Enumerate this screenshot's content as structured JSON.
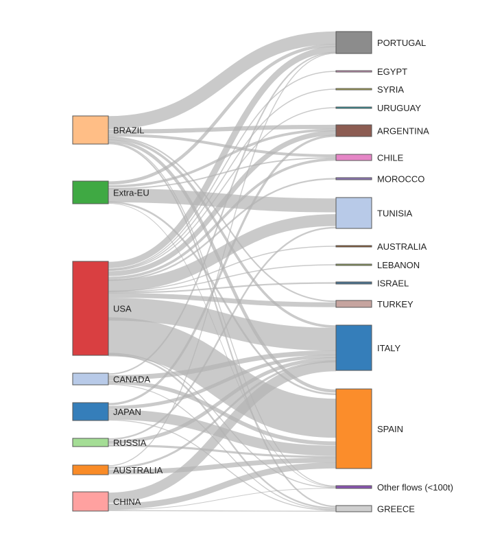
{
  "sources": [
    {
      "id": "brazil",
      "label": "BRAZIL",
      "color": "#ffbe86"
    },
    {
      "id": "extra-eu",
      "label": "Extra-EU",
      "color": "#3fa943"
    },
    {
      "id": "usa",
      "label": "USA",
      "color": "#d93f41"
    },
    {
      "id": "canada",
      "label": "CANADA",
      "color": "#b8cae8"
    },
    {
      "id": "japan",
      "label": "JAPAN",
      "color": "#357eba"
    },
    {
      "id": "russia",
      "label": "RUSSIA",
      "color": "#a4dd95"
    },
    {
      "id": "australia-src",
      "label": "AUSTRALIA",
      "color": "#f98b27"
    },
    {
      "id": "china",
      "label": "CHINA",
      "color": "#ffa1a0"
    }
  ],
  "targets": [
    {
      "id": "portugal",
      "label": "PORTUGAL",
      "color": "#8c8c8c"
    },
    {
      "id": "egypt",
      "label": "EGYPT",
      "color": "#d79dc2"
    },
    {
      "id": "syria",
      "label": "SYRIA",
      "color": "#b7b34f"
    },
    {
      "id": "uruguay",
      "label": "URUGUAY",
      "color": "#2b9aa4"
    },
    {
      "id": "argentina",
      "label": "ARGENTINA",
      "color": "#8c5c52"
    },
    {
      "id": "chile",
      "label": "CHILE",
      "color": "#e586c6"
    },
    {
      "id": "morocco",
      "label": "MOROCCO",
      "color": "#8f78b6"
    },
    {
      "id": "tunisia",
      "label": "TUNISIA",
      "color": "#b8cae8"
    },
    {
      "id": "australia-dst",
      "label": "AUSTRALIA",
      "color": "#955a2a"
    },
    {
      "id": "lebanon",
      "label": "LEBANON",
      "color": "#98a85b"
    },
    {
      "id": "israel",
      "label": "ISRAEL",
      "color": "#4b7797"
    },
    {
      "id": "turkey",
      "label": "TURKEY",
      "color": "#c6a49f"
    },
    {
      "id": "italy",
      "label": "ITALY",
      "color": "#357eba"
    },
    {
      "id": "spain",
      "label": "SPAIN",
      "color": "#fb8d2b"
    },
    {
      "id": "other",
      "label": "Other flows (<100t)",
      "color": "#8a54b2"
    },
    {
      "id": "greece",
      "label": "GREECE",
      "color": "#cfcfcf"
    }
  ],
  "flows": [
    [
      "brazil",
      "portugal",
      12
    ],
    [
      "brazil",
      "argentina",
      4
    ],
    [
      "brazil",
      "chile",
      2.5
    ],
    [
      "brazil",
      "turkey",
      1
    ],
    [
      "brazil",
      "spain",
      2
    ],
    [
      "brazil",
      "italy",
      2
    ],
    [
      "brazil",
      "greece",
      1
    ],
    [
      "brazil",
      "other",
      0.8
    ],
    [
      "extra-eu",
      "tunisia",
      8
    ],
    [
      "extra-eu",
      "portugal",
      2.5
    ],
    [
      "extra-eu",
      "argentina",
      2
    ],
    [
      "extra-eu",
      "chile",
      1
    ],
    [
      "extra-eu",
      "spain",
      1
    ],
    [
      "extra-eu",
      "other",
      0.5
    ],
    [
      "usa",
      "portugal",
      5
    ],
    [
      "usa",
      "argentina",
      4
    ],
    [
      "usa",
      "tunisia",
      7
    ],
    [
      "usa",
      "turkey",
      3
    ],
    [
      "usa",
      "italy",
      16
    ],
    [
      "usa",
      "spain",
      22
    ],
    [
      "usa",
      "egypt",
      0.5
    ],
    [
      "usa",
      "syria",
      0.5
    ],
    [
      "usa",
      "uruguay",
      0.5
    ],
    [
      "usa",
      "morocco",
      0.8
    ],
    [
      "usa",
      "australia-dst",
      0.5
    ],
    [
      "usa",
      "lebanon",
      0.5
    ],
    [
      "usa",
      "israel",
      0.6
    ],
    [
      "usa",
      "other",
      0.8
    ],
    [
      "usa",
      "greece",
      1
    ],
    [
      "usa",
      "chile",
      2
    ],
    [
      "canada",
      "italy",
      3
    ],
    [
      "canada",
      "spain",
      2
    ],
    [
      "canada",
      "portugal",
      1
    ],
    [
      "canada",
      "greece",
      0.5
    ],
    [
      "japan",
      "spain",
      5
    ],
    [
      "japan",
      "italy",
      2
    ],
    [
      "japan",
      "argentina",
      1.5
    ],
    [
      "japan",
      "greece",
      0.5
    ],
    [
      "russia",
      "italy",
      2
    ],
    [
      "russia",
      "spain",
      1
    ],
    [
      "russia",
      "tunisia",
      0.8
    ],
    [
      "australia-src",
      "spain",
      2
    ],
    [
      "australia-src",
      "italy",
      1
    ],
    [
      "australia-src",
      "portugal",
      0.5
    ],
    [
      "china",
      "italy",
      6
    ],
    [
      "china",
      "spain",
      3
    ],
    [
      "china",
      "greece",
      0.5
    ],
    [
      "china",
      "other",
      0.3
    ]
  ]
}
